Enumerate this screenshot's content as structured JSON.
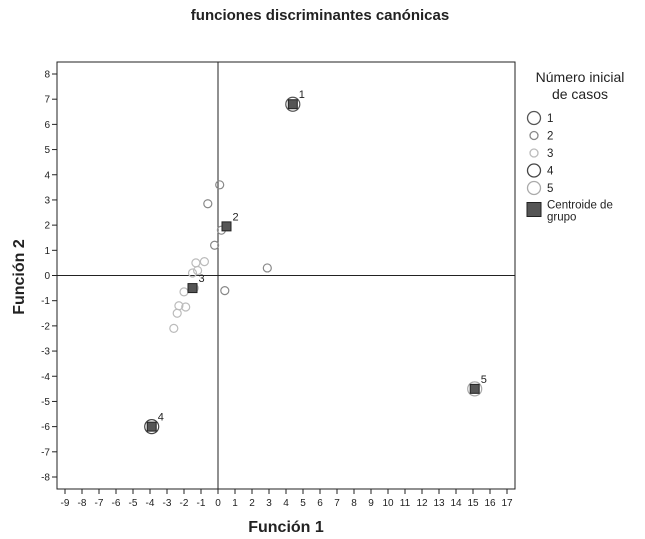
{
  "chart_data": {
    "type": "scatter",
    "title": "funciones discriminantes canónicas",
    "xlabel": "Función 1",
    "ylabel": "Función 2",
    "xlim": [
      -9,
      17
    ],
    "ylim": [
      -8,
      8
    ],
    "xticks": [
      -9,
      -8,
      -7,
      -6,
      -5,
      -4,
      -3,
      -2,
      -1,
      0,
      1,
      2,
      3,
      4,
      5,
      6,
      7,
      8,
      9,
      10,
      11,
      12,
      13,
      14,
      15,
      16,
      17
    ],
    "yticks": [
      -8,
      -7,
      -6,
      -5,
      -4,
      -3,
      -2,
      -1,
      0,
      1,
      2,
      3,
      4,
      5,
      6,
      7,
      8
    ],
    "grid": false,
    "reference_lines": {
      "x": 0,
      "y": 0
    },
    "legend": {
      "title_lines": [
        "Número inicial",
        "de casos"
      ],
      "position": "right",
      "entries": [
        {
          "label": "1",
          "marker": "circle-large",
          "color": "#555555"
        },
        {
          "label": "2",
          "marker": "circle-small",
          "color": "#888888"
        },
        {
          "label": "3",
          "marker": "circle-small",
          "color": "#bbbbbb"
        },
        {
          "label": "4",
          "marker": "circle-large",
          "color": "#444444"
        },
        {
          "label": "5",
          "marker": "circle-large",
          "color": "#aaaaaa"
        },
        {
          "label_lines": [
            "Centroide de",
            "grupo"
          ],
          "marker": "square",
          "color": "#555555"
        }
      ]
    },
    "series": [
      {
        "group": "1",
        "color": "#555555",
        "size": "large",
        "points": [
          [
            4.4,
            6.8
          ]
        ]
      },
      {
        "group": "2",
        "color": "#888888",
        "size": "small",
        "points": [
          [
            -0.6,
            2.85
          ],
          [
            0.1,
            3.6
          ],
          [
            -0.2,
            1.2
          ],
          [
            0.2,
            1.8
          ],
          [
            2.9,
            0.3
          ],
          [
            0.4,
            -0.6
          ]
        ]
      },
      {
        "group": "3",
        "color": "#bbbbbb",
        "size": "small",
        "points": [
          [
            -0.8,
            0.55
          ],
          [
            -1.3,
            0.5
          ],
          [
            -1.2,
            0.2
          ],
          [
            -1.5,
            0.1
          ],
          [
            -1.4,
            -0.5
          ],
          [
            -2.0,
            -0.65
          ],
          [
            -2.3,
            -1.2
          ],
          [
            -1.9,
            -1.25
          ],
          [
            -2.4,
            -1.5
          ],
          [
            -2.6,
            -2.1
          ]
        ]
      },
      {
        "group": "4",
        "color": "#444444",
        "size": "large",
        "points": [
          [
            -3.9,
            -6.0
          ]
        ]
      },
      {
        "group": "5",
        "color": "#aaaaaa",
        "size": "large",
        "points": [
          [
            15.1,
            -4.5
          ]
        ]
      }
    ],
    "centroids": [
      {
        "label": "1",
        "x": 4.4,
        "y": 6.8
      },
      {
        "label": "2",
        "x": 0.5,
        "y": 1.95
      },
      {
        "label": "3",
        "x": -1.5,
        "y": -0.5
      },
      {
        "label": "4",
        "x": -3.9,
        "y": -6.0
      },
      {
        "label": "5",
        "x": 15.1,
        "y": -4.5
      }
    ]
  }
}
